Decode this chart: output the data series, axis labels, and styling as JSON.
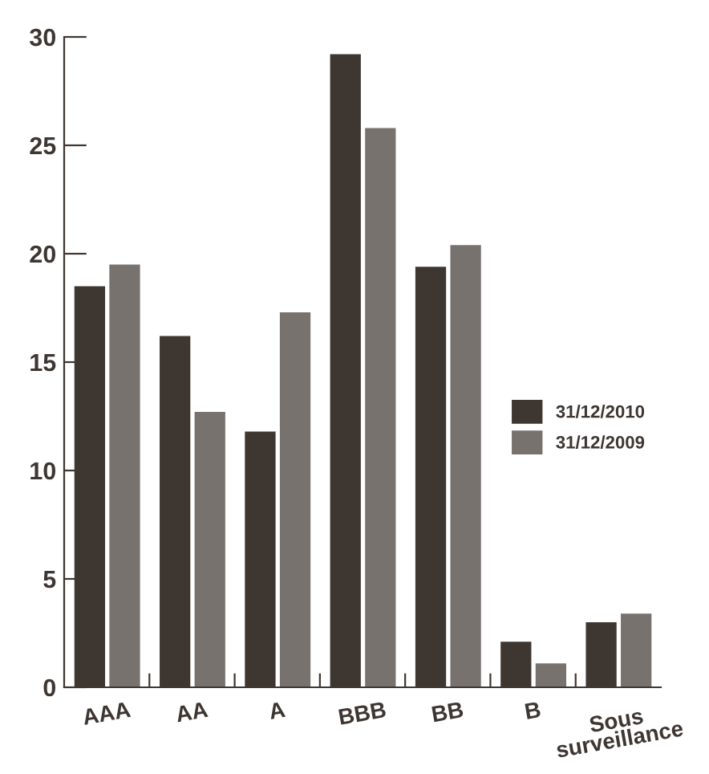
{
  "chart_data": {
    "type": "bar",
    "categories": [
      "AAA",
      "AA",
      "A",
      "BBB",
      "BB",
      "B",
      "Sous\nsurveillance"
    ],
    "series": [
      {
        "name": "31/12/2010",
        "color": "#3e3631",
        "values": [
          18.5,
          16.2,
          11.8,
          29.2,
          19.4,
          2.1,
          3.0
        ]
      },
      {
        "name": "31/12/2009",
        "color": "#78726e",
        "values": [
          19.5,
          12.7,
          17.3,
          25.8,
          20.4,
          1.1,
          3.4
        ]
      }
    ],
    "ylim": [
      0,
      30
    ],
    "yticks": [
      0,
      5,
      10,
      15,
      20,
      25,
      30
    ],
    "grid": false,
    "legend": "right"
  }
}
